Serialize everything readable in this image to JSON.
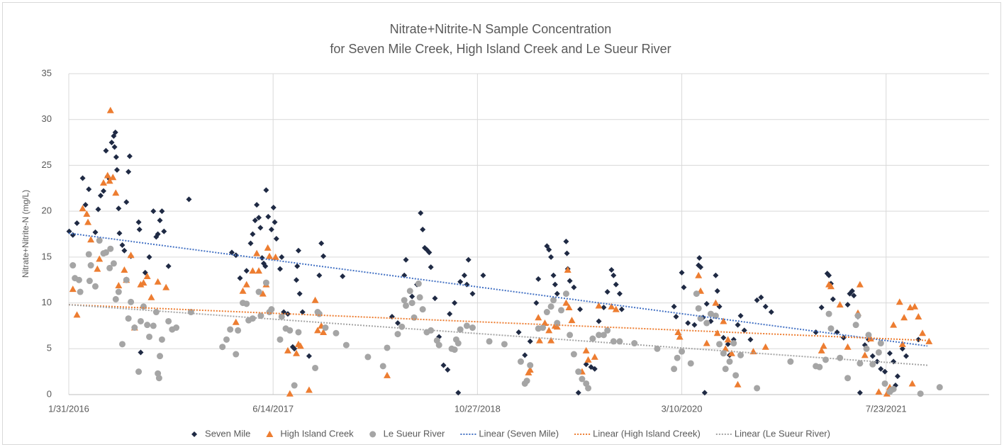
{
  "chart_data": {
    "type": "scatter",
    "title": "Nitrate+Nitrite-N Sample Concentration",
    "subtitle": "for Seven Mile Creek, High Island Creek and Le Sueur River",
    "y_label": "Nitrate+Nitrite-N (mg/L)",
    "xlim": [
      "2016-01-31",
      "2022-04-01"
    ],
    "xticks": [
      {
        "value": "2016-01-31",
        "label": "1/31/2016"
      },
      {
        "value": "2017-06-14",
        "label": "6/14/2017"
      },
      {
        "value": "2018-10-27",
        "label": "10/27/2018"
      },
      {
        "value": "2020-03-10",
        "label": "3/10/2020"
      },
      {
        "value": "2021-07-23",
        "label": "7/23/2021"
      }
    ],
    "ylim": [
      0,
      35
    ],
    "yticks": [
      0,
      5,
      10,
      15,
      20,
      25,
      30,
      35
    ],
    "grid": true,
    "series": [
      {
        "name": "Seven Mile",
        "color": "#1f2a44",
        "marker": "diamond",
        "x": [
          "2016-02-01",
          "2016-02-10",
          "2016-02-20",
          "2016-03-05",
          "2016-03-12",
          "2016-03-20",
          "2016-04-05",
          "2016-04-12",
          "2016-04-18",
          "2016-04-25",
          "2016-05-01",
          "2016-05-05",
          "2016-05-10",
          "2016-05-15",
          "2016-05-20",
          "2016-05-24",
          "2016-05-22",
          "2016-05-26",
          "2016-05-28",
          "2016-06-01",
          "2016-06-03",
          "2016-06-10",
          "2016-06-15",
          "2016-06-20",
          "2016-06-25",
          "2016-06-28",
          "2016-07-01",
          "2016-07-20",
          "2016-07-22",
          "2016-07-25",
          "2016-08-05",
          "2016-08-15",
          "2016-08-25",
          "2016-09-01",
          "2016-09-05",
          "2016-09-10",
          "2016-09-15",
          "2016-09-20",
          "2016-10-01",
          "2016-11-20",
          "2017-03-05",
          "2017-03-15",
          "2017-03-25",
          "2017-04-10",
          "2017-04-20",
          "2017-04-25",
          "2017-05-01",
          "2017-05-05",
          "2017-05-10",
          "2017-05-14",
          "2017-05-18",
          "2017-05-22",
          "2017-05-26",
          "2017-05-28",
          "2017-06-02",
          "2017-06-10",
          "2017-06-15",
          "2017-06-18",
          "2017-06-22",
          "2017-07-01",
          "2017-07-05",
          "2017-07-10",
          "2017-07-20",
          "2017-07-25",
          "2017-08-01",
          "2017-08-05",
          "2017-08-10",
          "2017-08-12",
          "2017-08-15",
          "2017-08-18",
          "2017-08-25",
          "2017-09-10",
          "2017-10-10",
          "2017-10-15",
          "2017-10-05",
          "2017-12-01",
          "2018-04-01",
          "2018-04-15",
          "2018-05-01",
          "2018-05-05",
          "2018-05-20",
          "2018-06-01",
          "2018-06-10",
          "2018-06-15",
          "2018-06-20",
          "2018-06-25",
          "2018-07-01",
          "2018-07-05",
          "2018-07-15",
          "2018-07-25",
          "2018-08-05",
          "2018-08-15",
          "2018-08-20",
          "2018-09-01",
          "2018-09-10",
          "2018-09-15",
          "2018-09-25",
          "2018-10-01",
          "2018-10-05",
          "2018-10-15",
          "2018-11-10",
          "2019-02-05",
          "2019-02-20",
          "2019-03-05",
          "2019-03-20",
          "2019-03-25",
          "2019-04-15",
          "2019-04-20",
          "2019-04-25",
          "2019-05-01",
          "2019-05-05",
          "2019-05-10",
          "2019-06-01",
          "2019-06-03",
          "2019-06-05",
          "2019-06-10",
          "2019-06-20",
          "2019-07-01",
          "2019-07-05",
          "2019-07-20",
          "2019-08-01",
          "2019-08-10",
          "2019-08-20",
          "2019-09-01",
          "2019-09-10",
          "2019-09-20",
          "2019-09-25",
          "2019-10-01",
          "2019-10-10",
          "2019-10-15",
          "2020-02-20",
          "2020-02-25",
          "2020-03-10",
          "2020-03-15",
          "2020-03-25",
          "2020-04-10",
          "2020-04-20",
          "2020-04-22",
          "2020-04-25",
          "2020-05-01",
          "2020-05-05",
          "2020-05-10",
          "2020-05-20",
          "2020-06-01",
          "2020-06-05",
          "2020-06-10",
          "2020-06-20",
          "2020-07-01",
          "2020-07-05",
          "2020-07-15",
          "2020-07-25",
          "2020-08-01",
          "2020-08-10",
          "2020-08-25",
          "2020-09-10",
          "2020-09-20",
          "2020-10-01",
          "2020-10-15",
          "2021-02-01",
          "2021-02-15",
          "2021-03-01",
          "2021-03-05",
          "2021-03-10",
          "2021-03-15",
          "2021-03-25",
          "2021-04-10",
          "2021-04-20",
          "2021-04-25",
          "2021-05-01",
          "2021-05-05",
          "2021-05-15",
          "2021-05-20",
          "2021-06-01",
          "2021-06-10",
          "2021-06-20",
          "2021-07-01",
          "2021-07-10",
          "2021-07-20",
          "2021-08-01",
          "2021-08-10",
          "2021-08-15",
          "2021-08-20",
          "2021-09-01",
          "2021-09-10",
          "2021-10-10"
        ],
        "values": [
          17.8,
          17.4,
          18.7,
          23.6,
          20.7,
          22.4,
          17.7,
          20.2,
          21.7,
          22.2,
          26.6,
          23.8,
          23.5,
          27.5,
          28.2,
          28.6,
          27.0,
          25.9,
          24.5,
          20.3,
          17.6,
          16.3,
          15.7,
          21.0,
          24.3,
          26.0,
          15.1,
          18.8,
          18.0,
          4.6,
          13.3,
          15.0,
          20.0,
          17.2,
          17.5,
          19.0,
          20.0,
          17.8,
          14.0,
          21.3,
          15.5,
          15.2,
          12.7,
          13.5,
          16.5,
          17.5,
          19.0,
          20.7,
          19.3,
          18.2,
          14.9,
          14.3,
          14.0,
          22.3,
          19.4,
          18.0,
          20.4,
          18.8,
          17.0,
          13.7,
          15.0,
          9.0,
          8.8,
          7.0,
          5.2,
          5.0,
          12.5,
          14.0,
          15.7,
          11.0,
          9.0,
          4.2,
          16.5,
          15.1,
          13.0,
          12.9,
          8.5,
          7.8,
          13.0,
          14.7,
          10.7,
          12.0,
          19.8,
          18.0,
          16.0,
          15.8,
          15.5,
          13.9,
          10.5,
          6.3,
          3.2,
          2.7,
          8.8,
          10.0,
          0.2,
          12.3,
          13.0,
          12.0,
          14.7,
          11.0,
          13.0,
          6.8,
          4.3,
          5.8,
          10.0,
          12.6,
          16.2,
          15.8,
          15.0,
          13.0,
          12.0,
          11.0,
          16.7,
          15.4,
          13.7,
          12.4,
          11.7,
          0.2,
          9.3,
          3.3,
          3.0,
          2.8,
          8.0,
          9.5,
          11.2,
          13.6,
          13.0,
          12.0,
          11.0,
          9.3,
          9.6,
          8.5,
          13.3,
          11.7,
          7.8,
          7.6,
          14.1,
          14.9,
          13.9,
          8.4,
          0.2,
          9.9,
          8.0,
          13.0,
          11.3,
          9.6,
          6.2,
          5.5,
          4.3,
          6.0,
          7.6,
          8.6,
          7.0,
          6.0,
          10.3,
          10.6,
          9.6,
          9.0,
          6.8,
          9.5,
          13.2,
          13.0,
          12.1,
          10.4,
          6.8,
          6.2,
          9.8,
          11.0,
          11.3,
          10.8,
          8.5,
          0.2,
          5.4,
          6.0,
          4.2,
          3.6,
          2.8,
          2.5,
          4.5,
          3.6,
          1.0,
          2.0,
          5.0,
          4.2,
          6.0
        ]
      },
      {
        "name": "High Island Creek",
        "color": "#ed7d31",
        "marker": "triangle",
        "x": [
          "2016-02-10",
          "2016-02-20",
          "2016-03-05",
          "2016-03-15",
          "2016-03-18",
          "2016-03-25",
          "2016-04-10",
          "2016-04-15",
          "2016-04-25",
          "2016-05-05",
          "2016-05-10",
          "2016-05-12",
          "2016-05-18",
          "2016-05-25",
          "2016-06-01",
          "2016-06-15",
          "2016-06-20",
          "2016-07-01",
          "2016-07-10",
          "2016-07-25",
          "2016-08-01",
          "2016-08-10",
          "2016-08-20",
          "2016-09-05",
          "2016-09-25",
          "2017-03-15",
          "2017-04-01",
          "2017-04-10",
          "2017-04-25",
          "2017-05-05",
          "2017-05-10",
          "2017-05-20",
          "2017-05-28",
          "2017-06-01",
          "2017-06-05",
          "2017-06-20",
          "2017-07-20",
          "2017-07-25",
          "2017-08-10",
          "2017-08-15",
          "2017-08-20",
          "2017-09-10",
          "2017-09-25",
          "2017-10-01",
          "2017-10-10",
          "2017-10-15",
          "2018-03-20",
          "2019-03-01",
          "2019-03-05",
          "2019-03-25",
          "2019-03-28",
          "2019-04-10",
          "2019-04-20",
          "2019-04-25",
          "2019-05-05",
          "2019-05-10",
          "2019-06-01",
          "2019-06-05",
          "2019-06-08",
          "2019-06-15",
          "2019-07-10",
          "2019-07-20",
          "2019-07-25",
          "2019-08-10",
          "2019-08-20",
          "2019-09-20",
          "2019-10-01",
          "2020-03-01",
          "2020-03-05",
          "2020-04-20",
          "2020-04-25",
          "2020-05-10",
          "2020-06-01",
          "2020-06-05",
          "2020-06-20",
          "2020-06-25",
          "2020-07-01",
          "2020-07-10",
          "2020-07-25",
          "2020-09-01",
          "2020-10-01",
          "2021-02-15",
          "2021-02-20",
          "2021-03-05",
          "2021-03-10",
          "2021-04-01",
          "2021-04-20",
          "2021-05-15",
          "2021-05-20",
          "2021-06-01",
          "2021-06-15",
          "2021-07-05",
          "2021-07-25",
          "2021-08-01",
          "2021-08-10",
          "2021-08-25",
          "2021-09-01",
          "2021-09-05",
          "2021-09-20",
          "2021-09-25",
          "2021-10-01",
          "2021-10-10",
          "2021-10-20",
          "2021-11-05"
        ],
        "values": [
          11.5,
          8.7,
          20.3,
          19.7,
          18.8,
          16.9,
          13.7,
          14.8,
          23.1,
          23.9,
          23.3,
          31.0,
          23.7,
          22.0,
          11.9,
          13.6,
          12.5,
          15.2,
          7.3,
          12.0,
          12.2,
          12.9,
          10.6,
          12.3,
          11.7,
          7.9,
          11.3,
          12.0,
          13.5,
          15.4,
          13.5,
          11.0,
          12.0,
          16.0,
          15.1,
          15.0,
          4.8,
          0.1,
          4.5,
          5.5,
          5.3,
          0.5,
          10.3,
          7.0,
          7.5,
          6.8,
          2.1,
          2.4,
          2.7,
          8.4,
          5.9,
          7.8,
          7.0,
          5.9,
          7.5,
          7.4,
          10.0,
          13.6,
          9.5,
          8.1,
          2.5,
          4.8,
          3.8,
          4.1,
          9.7,
          9.6,
          9.3,
          6.8,
          6.3,
          13.0,
          11.3,
          5.6,
          10.0,
          6.7,
          8.0,
          5.0,
          6.0,
          4.5,
          1.1,
          4.7,
          5.2,
          4.8,
          5.3,
          12.0,
          11.8,
          9.8,
          5.2,
          8.9,
          12.0,
          4.3,
          6.1,
          0.3,
          0.1,
          0.8,
          7.6,
          10.1,
          5.5,
          8.4,
          9.5,
          1.2,
          9.6,
          8.5,
          6.7,
          5.8
        ]
      },
      {
        "name": "Le Sueur River",
        "color": "#a5a5a5",
        "marker": "circle",
        "x": [
          "2016-02-10",
          "2016-02-15",
          "2016-02-25",
          "2016-02-28",
          "2016-03-20",
          "2016-03-25",
          "2016-03-22",
          "2016-04-05",
          "2016-04-15",
          "2016-04-25",
          "2016-05-01",
          "2016-05-10",
          "2016-05-12",
          "2016-05-20",
          "2016-05-25",
          "2016-06-01",
          "2016-06-10",
          "2016-06-20",
          "2016-06-25",
          "2016-07-01",
          "2016-07-10",
          "2016-07-20",
          "2016-07-25",
          "2016-08-01",
          "2016-08-10",
          "2016-08-15",
          "2016-08-25",
          "2016-09-01",
          "2016-09-05",
          "2016-09-08",
          "2016-09-10",
          "2016-09-15",
          "2016-10-01",
          "2016-10-10",
          "2016-10-20",
          "2016-11-25",
          "2017-02-10",
          "2017-02-20",
          "2017-03-01",
          "2017-03-15",
          "2017-03-20",
          "2017-04-01",
          "2017-04-10",
          "2017-04-15",
          "2017-04-25",
          "2017-05-10",
          "2017-05-15",
          "2017-05-28",
          "2017-06-05",
          "2017-06-10",
          "2017-07-01",
          "2017-07-05",
          "2017-07-15",
          "2017-07-25",
          "2017-08-05",
          "2017-08-15",
          "2017-09-25",
          "2017-10-01",
          "2017-10-05",
          "2017-10-20",
          "2017-11-15",
          "2017-12-10",
          "2018-02-01",
          "2018-03-10",
          "2018-03-20",
          "2018-04-15",
          "2018-04-25",
          "2018-05-01",
          "2018-05-05",
          "2018-05-15",
          "2018-05-20",
          "2018-05-25",
          "2018-06-05",
          "2018-06-08",
          "2018-06-15",
          "2018-06-25",
          "2018-07-05",
          "2018-07-20",
          "2018-07-25",
          "2018-08-25",
          "2018-09-01",
          "2018-09-05",
          "2018-09-10",
          "2018-09-15",
          "2018-10-01",
          "2018-10-15",
          "2018-11-25",
          "2019-01-01",
          "2019-02-10",
          "2019-02-20",
          "2019-02-25",
          "2019-03-05",
          "2019-03-25",
          "2019-04-05",
          "2019-04-15",
          "2019-04-25",
          "2019-05-01",
          "2019-05-10",
          "2019-05-20",
          "2019-06-01",
          "2019-06-10",
          "2019-06-20",
          "2019-07-01",
          "2019-07-10",
          "2019-07-20",
          "2019-07-25",
          "2019-08-05",
          "2019-08-20",
          "2019-09-01",
          "2019-09-10",
          "2019-09-25",
          "2019-10-10",
          "2019-11-15",
          "2020-01-10",
          "2020-02-20",
          "2020-02-28",
          "2020-03-10",
          "2020-04-01",
          "2020-04-15",
          "2020-04-20",
          "2020-04-25",
          "2020-05-10",
          "2020-05-20",
          "2020-06-01",
          "2020-06-10",
          "2020-06-20",
          "2020-06-25",
          "2020-07-05",
          "2020-07-15",
          "2020-07-20",
          "2020-08-01",
          "2020-09-10",
          "2020-12-01",
          "2021-02-01",
          "2021-02-10",
          "2021-02-25",
          "2021-03-05",
          "2021-03-10",
          "2021-04-01",
          "2021-04-20",
          "2021-05-10",
          "2021-05-15",
          "2021-05-20",
          "2021-06-05",
          "2021-06-10",
          "2021-06-20",
          "2021-07-05",
          "2021-07-10",
          "2021-07-20",
          "2021-08-01",
          "2021-08-05",
          "2021-08-10",
          "2021-10-15",
          "2021-12-01"
        ],
        "values": [
          14.1,
          12.7,
          12.5,
          11.2,
          15.3,
          14.1,
          12.4,
          11.8,
          16.8,
          15.4,
          15.5,
          13.8,
          15.9,
          14.3,
          10.4,
          11.2,
          5.5,
          12.5,
          8.3,
          10.1,
          7.3,
          2.5,
          8.0,
          9.6,
          7.6,
          6.3,
          7.5,
          9.0,
          2.3,
          1.8,
          4.2,
          6.0,
          8.0,
          7.1,
          7.3,
          9.0,
          5.2,
          6.0,
          7.1,
          4.4,
          7.0,
          10.0,
          9.9,
          8.1,
          8.3,
          11.2,
          8.6,
          12.2,
          9.0,
          9.3,
          6.0,
          8.5,
          7.2,
          7.0,
          1.0,
          6.8,
          2.9,
          9.0,
          8.8,
          7.3,
          6.7,
          5.4,
          4.1,
          3.1,
          5.1,
          6.6,
          7.4,
          10.3,
          9.7,
          11.3,
          10.0,
          8.4,
          12.1,
          10.6,
          9.3,
          6.8,
          7.0,
          5.9,
          5.4,
          5.0,
          4.9,
          6.0,
          5.6,
          7.1,
          7.5,
          7.3,
          5.8,
          5.5,
          3.6,
          1.2,
          1.5,
          3.2,
          7.2,
          7.3,
          9.0,
          9.6,
          10.3,
          7.8,
          9.2,
          11.0,
          6.5,
          4.4,
          2.5,
          1.7,
          1.2,
          0.7,
          6.1,
          6.5,
          6.5,
          7.0,
          5.8,
          5.8,
          5.6,
          5.0,
          2.8,
          4.0,
          4.7,
          3.4,
          11.0,
          9.4,
          8.3,
          7.8,
          8.8,
          8.6,
          5.5,
          4.5,
          2.8,
          3.6,
          5.6,
          2.1,
          4.3,
          0.7,
          3.6,
          3.1,
          3.0,
          3.8,
          8.8,
          7.2,
          4.0,
          1.8,
          7.6,
          8.6,
          3.4,
          5.0,
          6.5,
          3.3,
          4.6,
          5.6,
          1.2,
          0.3,
          0.5,
          0.6,
          0.1,
          0.8
        ]
      }
    ],
    "trendlines": [
      {
        "name": "Linear (Seven Mile)",
        "color": "#4472c4",
        "x": [
          "2016-01-31",
          "2021-11-01"
        ],
        "values": [
          17.6,
          5.3
        ]
      },
      {
        "name": "Linear (High Island Creek)",
        "color": "#ed7d31",
        "x": [
          "2016-01-31",
          "2021-11-01"
        ],
        "values": [
          9.8,
          5.9
        ]
      },
      {
        "name": "Linear (Le Sueur River)",
        "color": "#a5a5a5",
        "x": [
          "2016-01-31",
          "2021-11-01"
        ],
        "values": [
          9.8,
          3.2
        ]
      }
    ]
  }
}
